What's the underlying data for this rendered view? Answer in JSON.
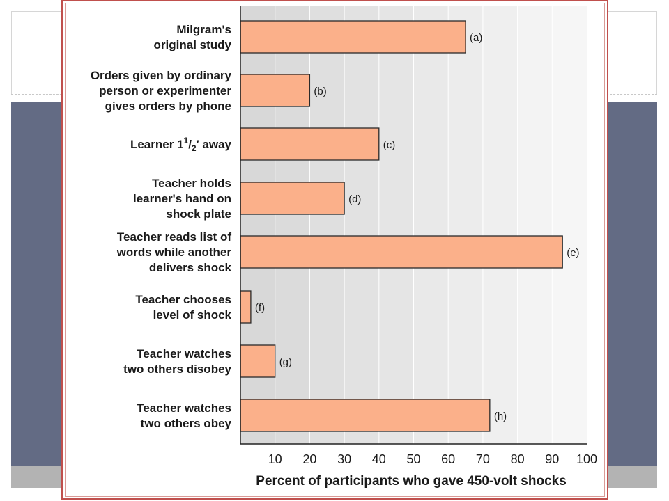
{
  "slide": {
    "band_color": "#636b84",
    "footer_color": "#b3b3b3",
    "frame_color": "#c0504d"
  },
  "chart_data": {
    "type": "bar",
    "orientation": "horizontal",
    "categories": [
      [
        "Milgram's",
        "original study"
      ],
      [
        "Orders given by ordinary",
        "person or experimenter",
        "gives orders by phone"
      ],
      [
        "Learner 1½′ away"
      ],
      [
        "Teacher holds",
        "learner's hand on",
        "shock plate"
      ],
      [
        "Teacher reads list of",
        "words while another",
        "delivers shock"
      ],
      [
        "Teacher chooses",
        "level of shock"
      ],
      [
        "Teacher watches",
        "two others disobey"
      ],
      [
        "Teacher watches",
        "two others obey"
      ]
    ],
    "category_labels_text": {
      "learner_main": "Learner 1",
      "learner_sup": "1",
      "learner_slash": "/",
      "learner_sub": "2",
      "learner_rest": "′ away"
    },
    "bar_tags": [
      "(a)",
      "(b)",
      "(c)",
      "(d)",
      "(e)",
      "(f)",
      "(g)",
      "(h)"
    ],
    "values": [
      65,
      20,
      40,
      30,
      93,
      3,
      10,
      72
    ],
    "xlim": [
      0,
      100
    ],
    "xticks": [
      10,
      20,
      30,
      40,
      50,
      60,
      70,
      80,
      90,
      100
    ],
    "xlabel": "Percent of participants who gave 450-volt shocks",
    "title": "",
    "bar_color": "#fbb08a",
    "bar_edge_color": "#2a2a2a",
    "plot_band_dark": "#d8d8d8",
    "plot_band_light": "#f4f4f4",
    "grid": true
  }
}
